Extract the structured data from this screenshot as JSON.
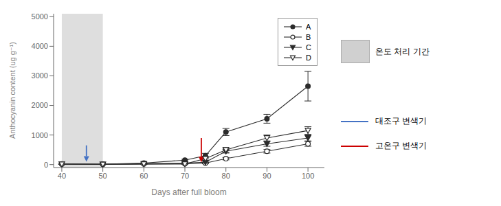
{
  "chart_data": {
    "type": "line",
    "x": [
      40,
      50,
      60,
      70,
      75,
      80,
      90,
      100
    ],
    "series": [
      {
        "name": "A",
        "color": "#2b2b2b",
        "marker": "circle",
        "values": [
          20,
          15,
          50,
          150,
          300,
          1100,
          1550,
          2650
        ],
        "errors": [
          5,
          5,
          15,
          30,
          80,
          120,
          150,
          500
        ]
      },
      {
        "name": "B",
        "color": "#2b2b2b",
        "marker": "open circle",
        "values": [
          15,
          10,
          20,
          30,
          50,
          200,
          450,
          700
        ],
        "errors": [
          5,
          5,
          10,
          15,
          20,
          40,
          60,
          80
        ]
      },
      {
        "name": "C",
        "color": "#2b2b2b",
        "marker": "triangle down",
        "values": [
          18,
          10,
          30,
          50,
          80,
          450,
          700,
          900
        ],
        "errors": [
          5,
          5,
          10,
          20,
          30,
          60,
          80,
          100
        ]
      },
      {
        "name": "D",
        "color": "#2b2b2b",
        "marker": "open triangle down",
        "values": [
          15,
          8,
          20,
          20,
          200,
          500,
          900,
          1150
        ],
        "errors": [
          5,
          5,
          10,
          10,
          60,
          80,
          100,
          130
        ]
      }
    ],
    "xlim": [
      38,
      104
    ],
    "ylim": [
      -100,
      5100
    ],
    "xticks": [
      40,
      50,
      60,
      70,
      80,
      90,
      100
    ],
    "yticks": [
      0,
      1000,
      2000,
      3000,
      4000,
      5000
    ],
    "xlabel": "Days after full bloom",
    "ylabel": "Anthocyanin content (ug g⁻¹)",
    "legend": "upper right",
    "shaded_band": {
      "x": [
        40,
        50
      ],
      "color": "#d0d0d0",
      "label": "온도 처리 기간"
    },
    "arrows": [
      {
        "x": 46,
        "y_from": 650,
        "y_to": 100,
        "color": "#4472C4",
        "label": "대조구 변색기"
      },
      {
        "x": 74,
        "y_from": 900,
        "y_to": 80,
        "color": "#CC0000",
        "label": "고온구 변색기"
      }
    ]
  }
}
